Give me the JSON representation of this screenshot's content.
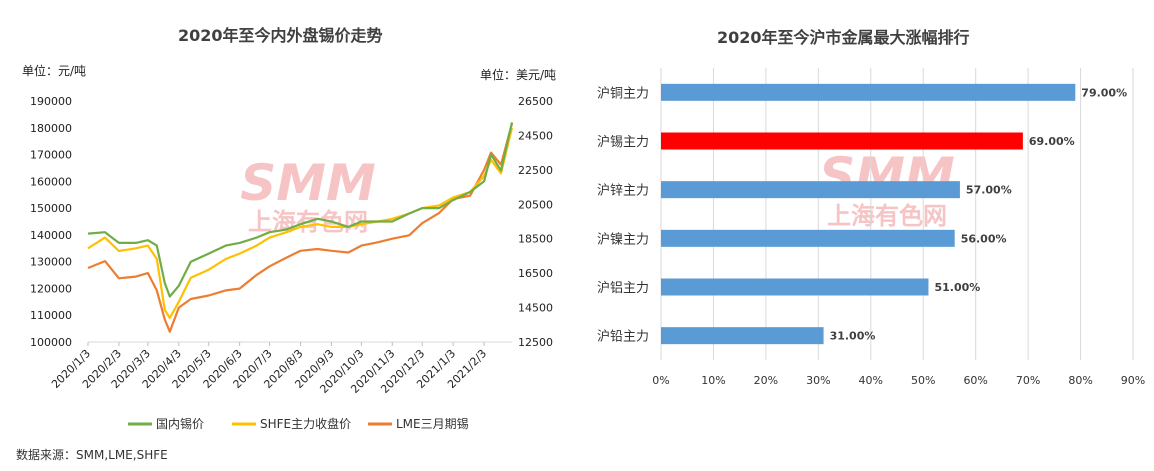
{
  "left_chart": {
    "title": "2020年至今内外盘锡价走势",
    "left_unit": "单位：元/吨",
    "right_unit": "单位：美元/吨",
    "source": "数据来源：SMM,LME,SHFE",
    "watermark_main": "SMM",
    "watermark_sub": "上海有色网"
  },
  "right_chart": {
    "title": "2020年至今沪市金属最大涨幅排行",
    "watermark_main": "SMM",
    "watermark_sub": "上海有色网"
  },
  "colors": {
    "domestic": "#70ad47",
    "shfe": "#ffc000",
    "lme": "#ed7d31",
    "bar": "#5b9bd5",
    "bar_highlight": "#ff0000",
    "watermark": "#f4b6b6"
  },
  "chart_data": [
    {
      "type": "line",
      "x_ticks": [
        "2020/1/3",
        "2020/2/3",
        "2020/3/3",
        "2020/4/3",
        "2020/5/3",
        "2020/6/3",
        "2020/7/3",
        "2020/8/3",
        "2020/9/3",
        "2020/10/3",
        "2020/11/3",
        "2020/12/3",
        "2021/1/3",
        "2021/2/3"
      ],
      "y_left": {
        "min": 100000,
        "max": 190000,
        "step": 10000
      },
      "y_right": {
        "min": 12500,
        "max": 26500,
        "step": 2000
      },
      "legend_position": "bottom",
      "series": [
        {
          "name": "国内锡价",
          "axis": "left",
          "x": [
            "2020/1/3",
            "2020/1/20",
            "2020/2/3",
            "2020/2/20",
            "2020/3/3",
            "2020/3/12",
            "2020/3/20",
            "2020/3/25",
            "2020/4/3",
            "2020/4/15",
            "2020/5/3",
            "2020/5/20",
            "2020/6/3",
            "2020/6/20",
            "2020/7/3",
            "2020/7/20",
            "2020/8/3",
            "2020/8/20",
            "2020/9/3",
            "2020/9/20",
            "2020/10/3",
            "2020/10/20",
            "2020/11/3",
            "2020/11/20",
            "2020/12/3",
            "2020/12/20",
            "2021/1/3",
            "2021/1/20",
            "2021/2/3",
            "2021/2/10",
            "2021/2/20",
            "2021/3/3"
          ],
          "values": [
            140500,
            141000,
            137000,
            137000,
            138000,
            136000,
            122000,
            117000,
            121000,
            130000,
            133000,
            136000,
            137000,
            139000,
            141000,
            142000,
            144000,
            146000,
            145000,
            143000,
            145000,
            145000,
            145000,
            148000,
            150000,
            150000,
            153000,
            156000,
            160000,
            170000,
            164000,
            182000
          ]
        },
        {
          "name": "SHFE主力收盘价",
          "axis": "left",
          "x": [
            "2020/1/3",
            "2020/1/20",
            "2020/2/3",
            "2020/2/20",
            "2020/3/3",
            "2020/3/12",
            "2020/3/20",
            "2020/3/25",
            "2020/4/3",
            "2020/4/15",
            "2020/5/3",
            "2020/5/20",
            "2020/6/3",
            "2020/6/20",
            "2020/7/3",
            "2020/7/20",
            "2020/8/3",
            "2020/8/20",
            "2020/9/3",
            "2020/9/20",
            "2020/10/3",
            "2020/10/20",
            "2020/11/3",
            "2020/11/20",
            "2020/12/3",
            "2020/12/20",
            "2021/1/3",
            "2021/1/20",
            "2021/2/3",
            "2021/2/10",
            "2021/2/20",
            "2021/3/3"
          ],
          "values": [
            135000,
            139000,
            134000,
            135000,
            136000,
            131000,
            112000,
            109000,
            115000,
            124000,
            127000,
            131000,
            133000,
            136000,
            139000,
            141000,
            143000,
            144000,
            143000,
            143000,
            144000,
            145000,
            146000,
            148000,
            150000,
            151000,
            154000,
            156000,
            162000,
            168000,
            163000,
            180000
          ]
        },
        {
          "name": "LME三月期锡",
          "axis": "right",
          "x": [
            "2020/1/3",
            "2020/1/20",
            "2020/2/3",
            "2020/2/20",
            "2020/3/3",
            "2020/3/12",
            "2020/3/20",
            "2020/3/25",
            "2020/4/3",
            "2020/4/15",
            "2020/5/3",
            "2020/5/20",
            "2020/6/3",
            "2020/6/20",
            "2020/7/3",
            "2020/7/20",
            "2020/8/3",
            "2020/8/20",
            "2020/9/3",
            "2020/9/20",
            "2020/10/3",
            "2020/10/20",
            "2020/11/3",
            "2020/11/20",
            "2020/12/3",
            "2020/12/20",
            "2021/1/3",
            "2021/1/20",
            "2021/2/3",
            "2021/2/10",
            "2021/2/20",
            "2021/3/3"
          ],
          "values": [
            16800,
            17200,
            16200,
            16300,
            16500,
            15500,
            13800,
            13100,
            14500,
            15000,
            15200,
            15500,
            15600,
            16400,
            16900,
            17400,
            17800,
            17900,
            17800,
            17700,
            18100,
            18300,
            18500,
            18700,
            19400,
            20000,
            20800,
            21000,
            22500,
            23500,
            22800,
            25200
          ]
        }
      ]
    },
    {
      "type": "bar",
      "orientation": "horizontal",
      "categories": [
        "沪铜主力",
        "沪锡主力",
        "沪锌主力",
        "沪镍主力",
        "沪铝主力",
        "沪铅主力"
      ],
      "values": [
        79,
        69,
        57,
        56,
        51,
        31
      ],
      "value_labels": [
        "79.00%",
        "69.00%",
        "57.00%",
        "56.00%",
        "51.00%",
        "31.00%"
      ],
      "highlight_index": 1,
      "x_ticks": [
        "0%",
        "10%",
        "20%",
        "30%",
        "40%",
        "50%",
        "60%",
        "70%",
        "80%",
        "90%"
      ],
      "xlim": [
        0,
        90
      ]
    }
  ]
}
